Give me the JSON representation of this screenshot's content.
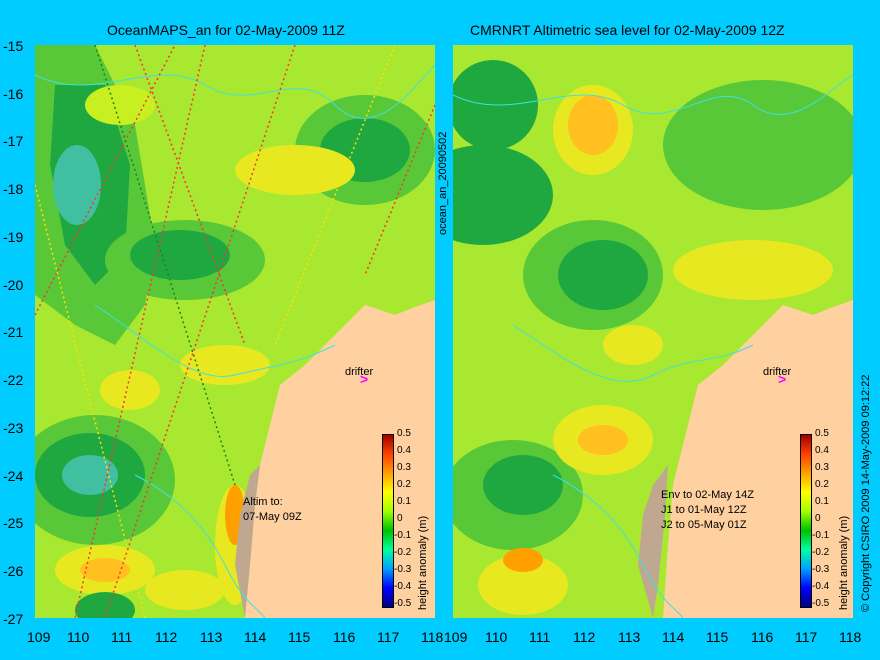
{
  "left_panel": {
    "title": "OceanMAPS_an for 02-May-2009 11Z",
    "drifter_label": "drifter",
    "drifter_arrow": ">",
    "note": "Altim to:\n07-May 09Z",
    "colorbar_title": "height anomaly (m)"
  },
  "right_panel": {
    "title": "CMRNRT Altimetric sea level  for 02-May-2009 12Z",
    "drifter_label": "drifter",
    "drifter_arrow": ">",
    "note": "Env to 02-May 14Z\nJ1 to 01-May 12Z\nJ2 to 05-May 01Z",
    "colorbar_title": "height anomaly (m)"
  },
  "vertical_label": "ocean_an_20090502",
  "copyright": "© Copyright CSIRO 2009   14-May-2009 09:12:22",
  "y_ticks": [
    "-15",
    "-16",
    "-17",
    "-18",
    "-19",
    "-20",
    "-21",
    "-22",
    "-23",
    "-24",
    "-25",
    "-26",
    "-27"
  ],
  "x_ticks_left": [
    "109",
    "110",
    "111",
    "112",
    "113",
    "114",
    "115",
    "116",
    "117",
    "118"
  ],
  "x_ticks_right": [
    "109",
    "110",
    "111",
    "112",
    "113",
    "114",
    "115",
    "116",
    "117",
    "118"
  ],
  "colorbar_ticks": [
    "0.5",
    "0.4",
    "0.3",
    "0.2",
    "0.1",
    "0",
    "-0.1",
    "-0.2",
    "-0.3",
    "-0.4",
    "-0.5"
  ],
  "colors": {
    "background": "#00ccff",
    "land": "#ffd0a0",
    "shelf": "#c0a890",
    "drifter_arrow": "#ff00ff"
  }
}
